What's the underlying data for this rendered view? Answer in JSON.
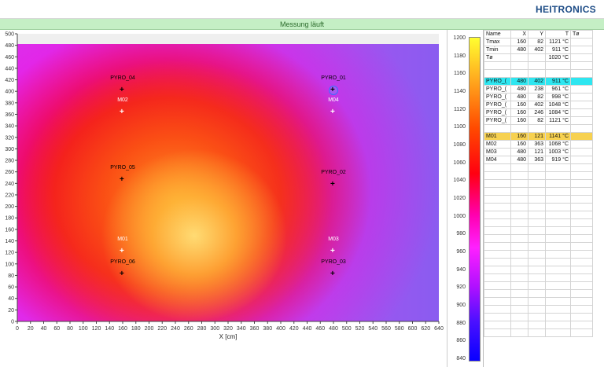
{
  "header": {
    "brand": "HEITRONICS"
  },
  "status": {
    "text": "Messung läuft"
  },
  "plot": {
    "xlabel": "X [cm]",
    "x_ticks": [
      "0",
      "20",
      "40",
      "60",
      "80",
      "100",
      "120",
      "140",
      "160",
      "180",
      "200",
      "220",
      "240",
      "260",
      "280",
      "300",
      "320",
      "340",
      "360",
      "380",
      "400",
      "420",
      "440",
      "460",
      "480",
      "500",
      "520",
      "540",
      "560",
      "580",
      "600",
      "620",
      "640"
    ],
    "y_ticks": [
      "500",
      "480",
      "460",
      "440",
      "420",
      "400",
      "380",
      "360",
      "340",
      "320",
      "300",
      "280",
      "260",
      "240",
      "220",
      "200",
      "180",
      "160",
      "140",
      "120",
      "100",
      "80",
      "60",
      "40",
      "20",
      "0"
    ],
    "markers": [
      {
        "id": "PYRO_04",
        "kind": "pyro",
        "x": 160,
        "y": 402
      },
      {
        "id": "PYRO_01",
        "kind": "pyro",
        "x": 480,
        "y": 402,
        "selected": true
      },
      {
        "id": "M02",
        "kind": "m",
        "x": 160,
        "y": 363
      },
      {
        "id": "M04",
        "kind": "m",
        "x": 480,
        "y": 363
      },
      {
        "id": "PYRO_05",
        "kind": "pyro",
        "x": 160,
        "y": 246
      },
      {
        "id": "PYRO_02",
        "kind": "pyro",
        "x": 480,
        "y": 238
      },
      {
        "id": "M01",
        "kind": "m",
        "x": 160,
        "y": 121
      },
      {
        "id": "M03",
        "kind": "m",
        "x": 480,
        "y": 121
      },
      {
        "id": "PYRO_06",
        "kind": "pyro",
        "x": 160,
        "y": 82
      },
      {
        "id": "PYRO_03",
        "kind": "pyro",
        "x": 480,
        "y": 82
      }
    ]
  },
  "scale": {
    "ticks": [
      "1200",
      "1180",
      "1160",
      "1140",
      "1120",
      "1100",
      "1080",
      "1060",
      "1040",
      "1020",
      "1000",
      "980",
      "960",
      "940",
      "920",
      "900",
      "880",
      "860",
      "840"
    ]
  },
  "table": {
    "headers": [
      "Name",
      "X",
      "Y",
      "T",
      "Tø"
    ],
    "summary": [
      {
        "name": "Tmax",
        "x": "160",
        "y": "82",
        "t": "1121 °C",
        "d": ""
      },
      {
        "name": "Tmin",
        "x": "480",
        "y": "402",
        "t": "911 °C",
        "d": ""
      },
      {
        "name": "Tø",
        "x": "",
        "y": "",
        "t": "1020 °C",
        "d": ""
      }
    ],
    "pyro": [
      {
        "name": "PYRO_(",
        "x": "480",
        "y": "402",
        "t": "911 °C",
        "d": ""
      },
      {
        "name": "PYRO_(",
        "x": "480",
        "y": "238",
        "t": "961 °C",
        "d": ""
      },
      {
        "name": "PYRO_(",
        "x": "480",
        "y": "82",
        "t": "998 °C",
        "d": ""
      },
      {
        "name": "PYRO_(",
        "x": "160",
        "y": "402",
        "t": "1048 °C",
        "d": ""
      },
      {
        "name": "PYRO_(",
        "x": "160",
        "y": "246",
        "t": "1084 °C",
        "d": ""
      },
      {
        "name": "PYRO_(",
        "x": "160",
        "y": "82",
        "t": "1121 °C",
        "d": ""
      }
    ],
    "m": [
      {
        "name": "M01",
        "x": "160",
        "y": "121",
        "t": "1141 °C",
        "d": ""
      },
      {
        "name": "M02",
        "x": "160",
        "y": "363",
        "t": "1068 °C",
        "d": ""
      },
      {
        "name": "M03",
        "x": "480",
        "y": "121",
        "t": "1003 °C",
        "d": ""
      },
      {
        "name": "M04",
        "x": "480",
        "y": "363",
        "t": "919 °C",
        "d": ""
      }
    ]
  },
  "colors": {
    "brand": "#1d4c86",
    "status_bg": "#c5efc5",
    "highlight_cyan": "#2ee6f0",
    "highlight_gold": "#f7d150"
  }
}
